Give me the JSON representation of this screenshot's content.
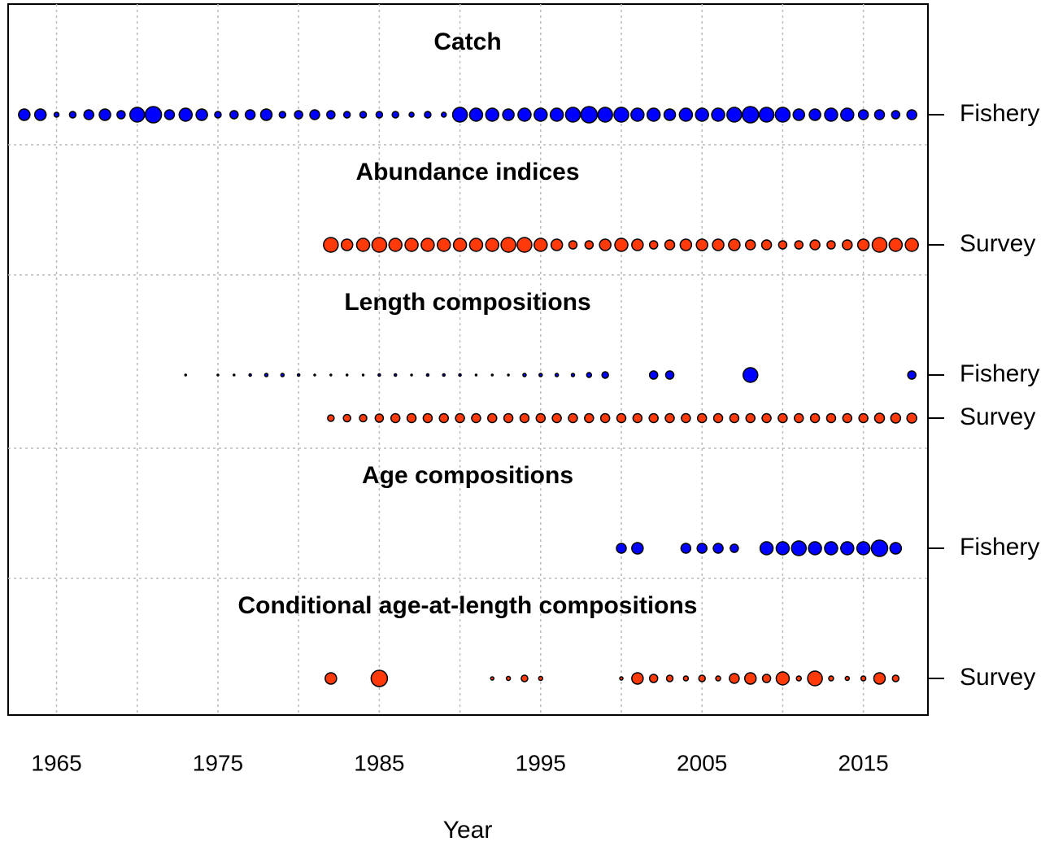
{
  "chart_data": {
    "type": "bubble",
    "xlabel": "Year",
    "xlim": [
      1962,
      2019
    ],
    "xticks": [
      1965,
      1975,
      1985,
      1995,
      2005,
      2015
    ],
    "xgrid": [
      1965,
      1970,
      1975,
      1980,
      1985,
      1990,
      1995,
      2000,
      2005,
      2010,
      2015
    ],
    "grid": true,
    "panels": [
      {
        "title": "Catch",
        "rows": [
          {
            "name": "Fishery",
            "color": "#0000ff",
            "x": [
              1963,
              1964,
              1965,
              1966,
              1967,
              1968,
              1969,
              1970,
              1971,
              1972,
              1973,
              1974,
              1975,
              1976,
              1977,
              1978,
              1979,
              1980,
              1981,
              1982,
              1983,
              1984,
              1985,
              1986,
              1987,
              1988,
              1989,
              1990,
              1991,
              1992,
              1993,
              1994,
              1995,
              1996,
              1997,
              1998,
              1999,
              2000,
              2001,
              2002,
              2003,
              2004,
              2005,
              2006,
              2007,
              2008,
              2009,
              2010,
              2011,
              2012,
              2013,
              2014,
              2015,
              2016,
              2017,
              2018
            ],
            "sizes": [
              7,
              7,
              3,
              4,
              6,
              7,
              5,
              9,
              10,
              6,
              8,
              7,
              4,
              5,
              6,
              7,
              4,
              5,
              6,
              5,
              4,
              4,
              4,
              4,
              3,
              4,
              3,
              9,
              8,
              8,
              7,
              8,
              8,
              8,
              9,
              10,
              9,
              9,
              8,
              8,
              7,
              8,
              8,
              8,
              9,
              10,
              9,
              9,
              7,
              7,
              8,
              8,
              6,
              6,
              5,
              6
            ]
          }
        ]
      },
      {
        "title": "Abundance indices",
        "rows": [
          {
            "name": "Survey",
            "color": "#ff3a0a",
            "x": [
              1982,
              1983,
              1984,
              1985,
              1986,
              1987,
              1988,
              1989,
              1990,
              1991,
              1992,
              1993,
              1994,
              1995,
              1996,
              1997,
              1998,
              1999,
              2000,
              2001,
              2002,
              2003,
              2004,
              2005,
              2006,
              2007,
              2008,
              2009,
              2010,
              2011,
              2012,
              2013,
              2014,
              2015,
              2016,
              2017,
              2018
            ],
            "sizes": [
              9,
              7,
              8,
              9,
              8,
              8,
              8,
              8,
              8,
              8,
              8,
              9,
              9,
              8,
              7,
              5,
              5,
              7,
              8,
              7,
              5,
              6,
              7,
              7,
              7,
              7,
              6,
              6,
              5,
              5,
              6,
              5,
              6,
              7,
              9,
              8,
              8
            ]
          }
        ]
      },
      {
        "title": "Length compositions",
        "rows": [
          {
            "name": "Fishery",
            "color": "#0000ff",
            "x": [
              1973,
              1975,
              1976,
              1977,
              1978,
              1979,
              1980,
              1981,
              1982,
              1983,
              1984,
              1985,
              1986,
              1987,
              1988,
              1989,
              1990,
              1991,
              1992,
              1993,
              1994,
              1995,
              1996,
              1997,
              1998,
              1999,
              2002,
              2003,
              2008,
              2018
            ],
            "sizes": [
              1,
              1,
              1,
              1.5,
              2,
              2,
              1.5,
              1,
              1,
              1,
              1,
              1.5,
              1.5,
              1,
              1.5,
              1.5,
              1.5,
              1,
              1,
              1,
              2,
              2,
              2,
              2,
              3,
              4,
              5,
              5,
              9,
              5
            ]
          },
          {
            "name": "Survey",
            "color": "#ff3a0a",
            "x": [
              1982,
              1983,
              1984,
              1985,
              1986,
              1987,
              1988,
              1989,
              1990,
              1991,
              1992,
              1993,
              1994,
              1995,
              1996,
              1997,
              1998,
              1999,
              2000,
              2001,
              2002,
              2003,
              2004,
              2005,
              2006,
              2007,
              2008,
              2009,
              2010,
              2011,
              2012,
              2013,
              2014,
              2015,
              2016,
              2017,
              2018
            ],
            "sizes": [
              4,
              4.5,
              4.5,
              5,
              5.5,
              5.5,
              5.5,
              5.5,
              5.5,
              5.5,
              5.5,
              5.5,
              5.5,
              5.5,
              5.5,
              5.5,
              5.5,
              5.5,
              5.5,
              5.5,
              5.5,
              5.5,
              5.5,
              5.5,
              5.5,
              5.5,
              5.5,
              5.5,
              5.5,
              5.5,
              5.5,
              5.5,
              5.5,
              5.5,
              6,
              6,
              6
            ]
          }
        ]
      },
      {
        "title": "Age compositions",
        "rows": [
          {
            "name": "Fishery",
            "color": "#0000ff",
            "x": [
              2000,
              2001,
              2004,
              2005,
              2006,
              2007,
              2009,
              2010,
              2011,
              2012,
              2013,
              2014,
              2015,
              2016,
              2017
            ],
            "sizes": [
              6,
              7,
              6,
              6,
              6,
              5,
              8,
              8,
              9,
              8,
              8,
              8,
              8,
              10,
              7
            ]
          }
        ]
      },
      {
        "title": "Conditional age-at-length compositions",
        "rows": [
          {
            "name": "Survey",
            "color": "#ff3a0a",
            "x": [
              1982,
              1985,
              1992,
              1993,
              1994,
              1995,
              2000,
              2001,
              2002,
              2003,
              2004,
              2005,
              2006,
              2007,
              2008,
              2009,
              2010,
              2011,
              2012,
              2013,
              2014,
              2015,
              2016,
              2017
            ],
            "sizes": [
              7,
              10,
              2,
              2.5,
              4,
              2.5,
              2,
              7,
              5,
              4,
              3,
              4,
              3,
              6,
              7,
              5,
              8,
              3,
              9,
              3,
              2.5,
              3,
              7,
              4
            ]
          }
        ]
      }
    ]
  }
}
